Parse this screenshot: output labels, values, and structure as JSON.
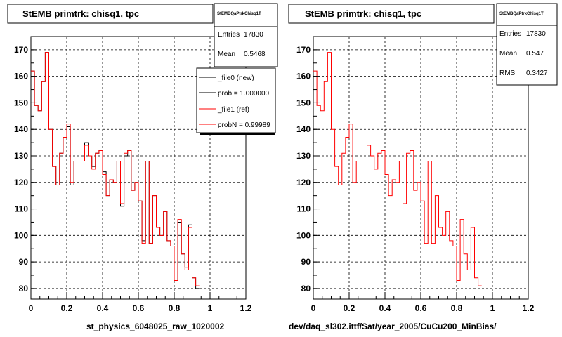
{
  "colors": {
    "new": "#000000",
    "ref": "#ff0000",
    "grid": "#000000",
    "frame": "#000000",
    "bg": "#ffffff"
  },
  "left_panel": {
    "title": "StEMB primtrk: chisq1, tpc",
    "stats": {
      "name": "StEMBQaPtrkChisq1T",
      "rows": [
        {
          "label": "Entries",
          "value": "17830"
        },
        {
          "label": "Mean",
          "value": "0.5468"
        }
      ]
    },
    "legend": [
      {
        "label": "_file0 (new)",
        "color": "#000000"
      },
      {
        "label": "prob = 1.000000",
        "color": "#000000"
      },
      {
        "label": "_file1 (ref)",
        "color": "#ff0000"
      },
      {
        "label": "probN = 0.99989",
        "color": "#ff0000"
      }
    ],
    "xlabel": "st_physics_6048025_raw_1020002",
    "footer_faint": "............"
  },
  "right_panel": {
    "title": "StEMB primtrk: chisq1, tpc",
    "stats": {
      "name": "StEMBQaPtrkChisq1T",
      "rows": [
        {
          "label": "Entries",
          "value": "17830"
        },
        {
          "label": "Mean",
          "value": "0.547"
        },
        {
          "label": "RMS",
          "value": "0.3427"
        }
      ]
    },
    "xlabel": "dev/daq_sl302.ittf/Sat/year_2005/CuCu200_MinBias/"
  },
  "chart_data": [
    {
      "type": "histogram",
      "title": "StEMB primtrk: chisq1, tpc",
      "xlabel": "st_physics_6048025_raw_1020002",
      "xlim": [
        0,
        1.2
      ],
      "ylim": [
        76,
        175
      ],
      "xticks": [
        "0",
        "0.2",
        "0.4",
        "0.6",
        "0.8",
        "1",
        "1.2"
      ],
      "yticks": [
        "80",
        "90",
        "100",
        "110",
        "120",
        "130",
        "140",
        "150",
        "160",
        "170"
      ],
      "grid": true,
      "bin_width": 0.02,
      "series": [
        {
          "name": "_file0 (new)",
          "color": "#000000",
          "values": [
            162,
            149,
            147,
            158,
            169,
            140,
            126,
            119,
            131,
            137,
            141,
            119,
            128,
            128,
            128,
            135,
            130,
            126,
            131,
            132,
            124,
            115,
            121,
            120,
            128,
            111,
            130,
            132,
            117,
            120,
            113,
            98,
            128,
            97,
            115,
            103,
            100,
            109,
            98,
            96,
            83,
            105,
            93,
            88,
            104,
            84,
            80
          ]
        },
        {
          "name": "_file1 (ref)",
          "color": "#ff0000",
          "values": [
            162,
            149,
            147,
            158,
            169,
            140,
            126,
            119,
            131,
            137,
            142,
            120,
            128,
            128,
            128,
            134,
            130,
            125,
            131,
            132,
            123,
            115,
            121,
            120,
            128,
            112,
            131,
            132,
            117,
            120,
            113,
            97,
            128,
            97,
            115,
            103,
            100,
            109,
            98,
            96,
            83,
            106,
            93,
            87,
            103,
            84,
            81
          ]
        }
      ]
    },
    {
      "type": "histogram",
      "title": "StEMB primtrk: chisq1, tpc",
      "xlabel": "dev/daq_sl302.ittf/Sat/year_2005/CuCu200_MinBias/",
      "xlim": [
        0,
        1.2
      ],
      "ylim": [
        76,
        175
      ],
      "xticks": [
        "0",
        "0.2",
        "0.4",
        "0.6",
        "0.8",
        "1",
        "1.2"
      ],
      "yticks": [
        "80",
        "90",
        "100",
        "110",
        "120",
        "130",
        "140",
        "150",
        "160",
        "170"
      ],
      "grid": true,
      "bin_width": 0.02,
      "series": [
        {
          "color": "#ff0000",
          "values": [
            162,
            149,
            147,
            158,
            169,
            140,
            126,
            119,
            131,
            137,
            142,
            120,
            128,
            128,
            128,
            134,
            130,
            125,
            131,
            132,
            123,
            115,
            121,
            120,
            128,
            112,
            131,
            132,
            117,
            120,
            113,
            97,
            128,
            97,
            115,
            103,
            100,
            109,
            98,
            96,
            83,
            106,
            93,
            87,
            103,
            84,
            81
          ]
        }
      ]
    }
  ]
}
